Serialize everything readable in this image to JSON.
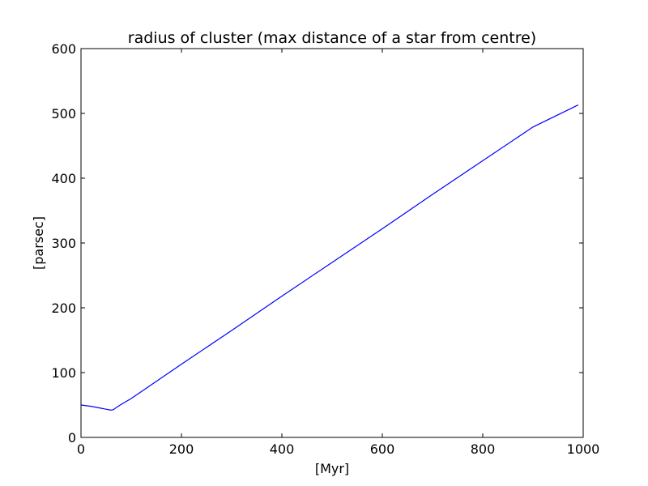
{
  "chart_data": {
    "type": "line",
    "title": "radius of cluster (max distance of a star from centre)",
    "xlabel": "[Myr]",
    "ylabel": "[parsec]",
    "xlim": [
      0,
      1000
    ],
    "ylim": [
      0,
      600
    ],
    "xticks": [
      0,
      200,
      400,
      600,
      800,
      1000
    ],
    "yticks": [
      0,
      100,
      200,
      300,
      400,
      500,
      600
    ],
    "xtick_labels": [
      "0",
      "200",
      "400",
      "600",
      "800",
      "1000"
    ],
    "ytick_labels": [
      "0",
      "100",
      "200",
      "300",
      "400",
      "500",
      "600"
    ],
    "grid": false,
    "legend": "none",
    "series": [
      {
        "color": "#0000ff",
        "x": [
          0,
          20,
          40,
          60,
          65,
          70,
          80,
          100,
          200,
          300,
          400,
          500,
          600,
          700,
          800,
          900,
          990
        ],
        "y": [
          50,
          48,
          45,
          42,
          43,
          46,
          51,
          60,
          113,
          165,
          218,
          270,
          322,
          375,
          427,
          479,
          513
        ]
      }
    ]
  }
}
